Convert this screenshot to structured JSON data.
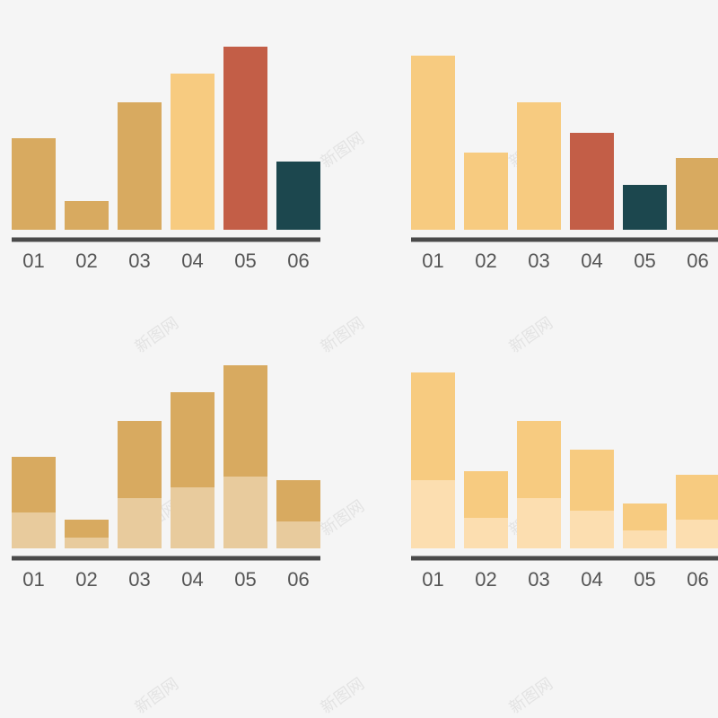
{
  "watermark": "新图网",
  "colors": {
    "background": "#f5f5f5",
    "axis": "#4a4a4a",
    "tick_text": "#555555",
    "tan": "#d8aa60",
    "light_gold": "#f7cb80",
    "red": "#c35e47",
    "teal": "#1c474e",
    "tan_light": "#e8cb9d",
    "gold_lighter": "#fcdeb0"
  },
  "chart_data": [
    {
      "type": "bar",
      "categories": [
        "01",
        "02",
        "03",
        "04",
        "05",
        "06"
      ],
      "values": [
        51,
        16,
        71,
        87,
        102,
        38
      ],
      "bar_colors": [
        "#d8aa60",
        "#d8aa60",
        "#d8aa60",
        "#f7cb80",
        "#c35e47",
        "#1c474e"
      ],
      "ylim": [
        0,
        110
      ]
    },
    {
      "type": "bar",
      "categories": [
        "01",
        "02",
        "03",
        "04",
        "05",
        "06"
      ],
      "values": [
        97,
        43,
        71,
        54,
        25,
        40
      ],
      "bar_colors": [
        "#f7cb80",
        "#f7cb80",
        "#f7cb80",
        "#c35e47",
        "#1c474e",
        "#d8aa60"
      ],
      "ylim": [
        0,
        110
      ]
    },
    {
      "type": "bar",
      "stacked": true,
      "categories": [
        "01",
        "02",
        "03",
        "04",
        "05",
        "06"
      ],
      "series": [
        {
          "values": [
            20,
            6,
            28,
            34,
            40,
            15
          ],
          "color": "#e8cb9d"
        },
        {
          "values": [
            31,
            10,
            43,
            53,
            62,
            23
          ],
          "color": "#d8aa60"
        }
      ],
      "ylim": [
        0,
        110
      ]
    },
    {
      "type": "bar",
      "stacked": true,
      "categories": [
        "01",
        "02",
        "03",
        "04",
        "05",
        "06"
      ],
      "series": [
        {
          "values": [
            38,
            17,
            28,
            21,
            10,
            16
          ],
          "color": "#fcdeb0"
        },
        {
          "values": [
            60,
            26,
            43,
            34,
            15,
            25
          ],
          "color": "#f7cb80"
        }
      ],
      "ylim": [
        0,
        110
      ]
    }
  ]
}
